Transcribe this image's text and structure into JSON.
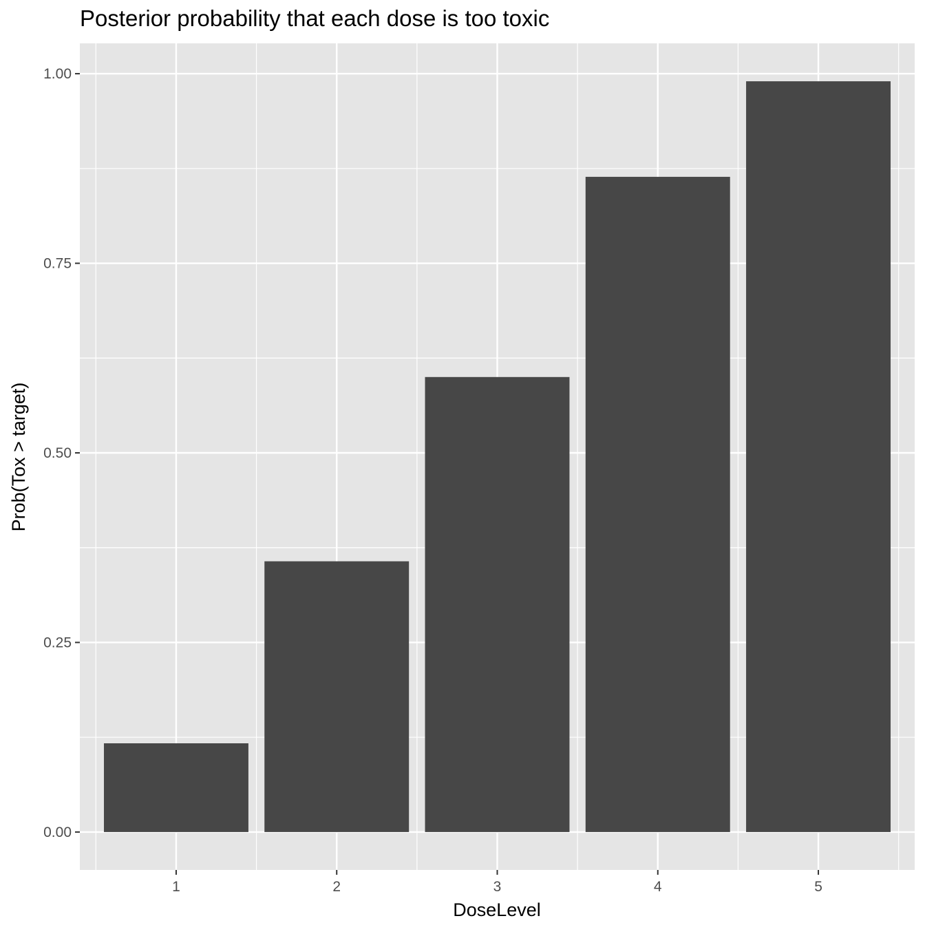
{
  "chart_data": {
    "type": "bar",
    "title": "Posterior probability that each dose is too toxic",
    "xlabel": "DoseLevel",
    "ylabel": "Prob(Tox > target)",
    "categories": [
      "1",
      "2",
      "3",
      "4",
      "5"
    ],
    "values": [
      0.117,
      0.357,
      0.6,
      0.864,
      0.99
    ],
    "ylim": [
      -0.05,
      1.04
    ],
    "yticks": [
      0.0,
      0.25,
      0.5,
      0.75,
      1.0
    ],
    "ytick_labels": [
      "0.00",
      "0.25",
      "0.50",
      "0.75",
      "1.00"
    ],
    "grid": true,
    "legend": "none",
    "colors": {
      "panel": "#e5e5e5",
      "bar": "#474747",
      "grid": "#ffffff",
      "tick": "#333333"
    }
  }
}
